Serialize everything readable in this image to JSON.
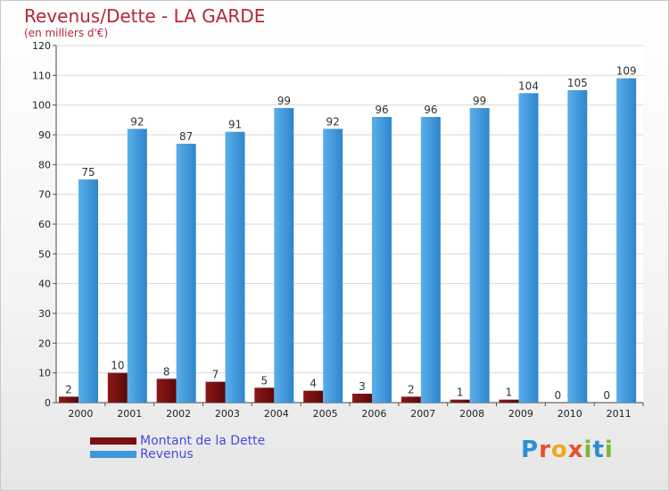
{
  "chart_data": {
    "type": "bar",
    "title": "Revenus/Dette - LA GARDE",
    "subtitle": "(en milliers d'€)",
    "categories": [
      "2000",
      "2001",
      "2002",
      "2003",
      "2004",
      "2005",
      "2006",
      "2007",
      "2008",
      "2009",
      "2010",
      "2011"
    ],
    "series": [
      {
        "name": "Montant de la Dette",
        "color": "#7a1010",
        "values": [
          2,
          10,
          8,
          7,
          5,
          4,
          3,
          2,
          1,
          1,
          0,
          0
        ]
      },
      {
        "name": "Revenus",
        "color": "#3d97dc",
        "values": [
          75,
          92,
          87,
          91,
          99,
          92,
          96,
          96,
          99,
          104,
          105,
          109
        ]
      }
    ],
    "ylim": [
      0,
      120
    ],
    "yticks": [
      0,
      10,
      20,
      30,
      40,
      50,
      60,
      70,
      80,
      90,
      100,
      110,
      120
    ],
    "grid": true,
    "legend_position": "bottom-left"
  },
  "logo": {
    "text": "Proxiti"
  }
}
